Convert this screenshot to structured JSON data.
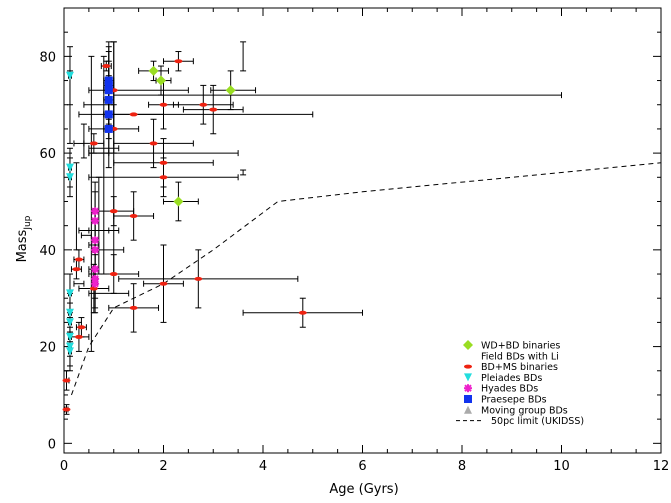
{
  "chart_data": {
    "type": "scatter",
    "title": "",
    "xlabel": "Age (Gyrs)",
    "ylabel_main": "Mass",
    "ylabel_sub": "Jup",
    "xlim": [
      0,
      12
    ],
    "ylim": [
      -2,
      90
    ],
    "xticks": [
      0,
      2,
      4,
      6,
      8,
      10,
      12
    ],
    "yticks": [
      0,
      20,
      40,
      60,
      80
    ],
    "grid": false,
    "legend_position": "bottom-right",
    "series": [
      {
        "name": "WD+BD binaries",
        "marker": "diamond",
        "color": "#99dd22",
        "points": [
          {
            "x": 1.8,
            "y": 77,
            "xerr": [
              0.3,
              0.3
            ],
            "yerr": [
              2,
              2
            ]
          },
          {
            "x": 1.95,
            "y": 75,
            "xerr": [
              0.1,
              0.2
            ],
            "yerr": [
              3,
              3
            ]
          },
          {
            "x": 3.35,
            "y": 73,
            "xerr": [
              0.4,
              0.5
            ],
            "yerr": [
              4,
              4
            ]
          },
          {
            "x": 2.3,
            "y": 50,
            "xerr": [
              0.3,
              0.4
            ],
            "yerr": [
              4,
              4
            ]
          }
        ]
      },
      {
        "name": "Field BDs with Li",
        "marker": "bowtie",
        "color": "#8833cc",
        "points": [
          {
            "x": 3.6,
            "y": 80,
            "xerr": [
              0,
              0
            ],
            "yerr": [
              3,
              3
            ]
          },
          {
            "x": 3.6,
            "y": 56,
            "xerr": [
              0,
              0
            ],
            "yerr": [
              0.5,
              0.5
            ]
          },
          {
            "x": 2.0,
            "y": 60,
            "xerr": [
              1.5,
              1.5
            ],
            "yerr": [
              0,
              0
            ]
          },
          {
            "x": 0.8,
            "y": 61,
            "xerr": [
              0.3,
              0.3
            ],
            "yerr": [
              0,
              0
            ]
          },
          {
            "x": 0.8,
            "y": 50,
            "xerr": [
              0,
              0
            ],
            "yerr": [
              0,
              0
            ]
          },
          {
            "x": 0.8,
            "y": 44,
            "xerr": [
              0.3,
              0.3
            ],
            "yerr": [
              0,
              0
            ]
          },
          {
            "x": 0.9,
            "y": 40,
            "xerr": [
              0.3,
              0.3
            ],
            "yerr": [
              0,
              0
            ]
          },
          {
            "x": 0.9,
            "y": 31,
            "xerr": [
              0.4,
              0.4
            ],
            "yerr": [
              0,
              0
            ]
          }
        ]
      },
      {
        "name": "BD+MS binaries",
        "marker": "dash",
        "color": "#ee2211",
        "points": [
          {
            "x": 2.3,
            "y": 79,
            "xerr": [
              0.3,
              0.3
            ],
            "yerr": [
              2,
              2
            ]
          },
          {
            "x": 0.85,
            "y": 78,
            "xerr": [
              0.1,
              0.1
            ],
            "yerr": [
              1,
              1
            ]
          },
          {
            "x": 2.0,
            "y": 70,
            "xerr": [
              0.3,
              0.3
            ],
            "yerr": [
              5,
              5
            ]
          },
          {
            "x": 1.0,
            "y": 73,
            "xerr": [
              0.5,
              1.5
            ],
            "yerr": [
              8,
              10
            ]
          },
          {
            "x": 2.8,
            "y": 70,
            "xerr": [
              0.6,
              0.6
            ],
            "yerr": [
              4,
              4
            ]
          },
          {
            "x": 3.0,
            "y": 69,
            "xerr": [
              0.6,
              0.6
            ],
            "yerr": [
              5,
              5
            ]
          },
          {
            "x": 1.4,
            "y": 68,
            "xerr": [
              0.6,
              0.6
            ],
            "yerr": [
              0,
              0
            ]
          },
          {
            "x": 1.0,
            "y": 65,
            "xerr": [
              0.5,
              0.5
            ],
            "yerr": [
              5,
              5
            ]
          },
          {
            "x": 1.8,
            "y": 62,
            "xerr": [
              0.8,
              0.8
            ],
            "yerr": [
              5,
              5
            ]
          },
          {
            "x": 0.6,
            "y": 62,
            "xerr": [
              0.2,
              0.2
            ],
            "yerr": [
              2,
              2
            ]
          },
          {
            "x": 2.0,
            "y": 58,
            "xerr": [
              1.0,
              1.0
            ],
            "yerr": [
              5,
              5
            ]
          },
          {
            "x": 2.0,
            "y": 55,
            "xerr": [
              1.5,
              1.5
            ],
            "yerr": [
              4,
              4
            ]
          },
          {
            "x": 1.0,
            "y": 48,
            "xerr": [
              0.4,
              0.4
            ],
            "yerr": [
              3,
              3
            ]
          },
          {
            "x": 1.4,
            "y": 47,
            "xerr": [
              0.4,
              0.4
            ],
            "yerr": [
              5,
              5
            ]
          },
          {
            "x": 0.3,
            "y": 38,
            "xerr": [
              0.1,
              0.1
            ],
            "yerr": [
              2,
              2
            ]
          },
          {
            "x": 0.25,
            "y": 36,
            "xerr": [
              0.1,
              0.1
            ],
            "yerr": [
              2,
              2
            ]
          },
          {
            "x": 1.0,
            "y": 35,
            "xerr": [
              0.5,
              0.5
            ],
            "yerr": [
              4,
              4
            ]
          },
          {
            "x": 2.7,
            "y": 34,
            "xerr": [
              1.6,
              2.0
            ],
            "yerr": [
              6,
              6
            ]
          },
          {
            "x": 2.0,
            "y": 33,
            "xerr": [
              0.4,
              0.4
            ],
            "yerr": [
              8,
              8
            ]
          },
          {
            "x": 0.6,
            "y": 32,
            "xerr": [
              0.3,
              0.3
            ],
            "yerr": [
              5,
              5
            ]
          },
          {
            "x": 1.4,
            "y": 28,
            "xerr": [
              0.5,
              0.5
            ],
            "yerr": [
              5,
              5
            ]
          },
          {
            "x": 4.8,
            "y": 27,
            "xerr": [
              1.2,
              1.2
            ],
            "yerr": [
              3,
              3
            ]
          },
          {
            "x": 0.35,
            "y": 24,
            "xerr": [
              0.1,
              0.1
            ],
            "yerr": [
              2,
              2
            ]
          },
          {
            "x": 0.3,
            "y": 22,
            "xerr": [
              0.2,
              0.2
            ],
            "yerr": [
              3,
              3
            ]
          },
          {
            "x": 0.05,
            "y": 13,
            "xerr": [
              0.05,
              0.05
            ],
            "yerr": [
              2,
              2
            ]
          },
          {
            "x": 0.05,
            "y": 7,
            "xerr": [
              0.03,
              0.03
            ],
            "yerr": [
              1,
              1
            ]
          }
        ]
      },
      {
        "name": "Pleiades BDs",
        "marker": "triangle-down",
        "color": "#22dddd",
        "points": [
          {
            "x": 0.12,
            "y": 76,
            "xerr": [
              0.03,
              0.03
            ],
            "yerr": [
              6,
              6
            ]
          },
          {
            "x": 0.12,
            "y": 57,
            "xerr": [
              0.03,
              0.03
            ],
            "yerr": [
              4,
              4
            ]
          },
          {
            "x": 0.12,
            "y": 55,
            "xerr": [
              0.03,
              0.03
            ],
            "yerr": [
              4,
              4
            ]
          },
          {
            "x": 0.12,
            "y": 31,
            "xerr": [
              0.03,
              0.03
            ],
            "yerr": [
              4,
              4
            ]
          },
          {
            "x": 0.12,
            "y": 27,
            "xerr": [
              0.03,
              0.03
            ],
            "yerr": [
              4,
              4
            ]
          },
          {
            "x": 0.12,
            "y": 25,
            "xerr": [
              0.03,
              0.03
            ],
            "yerr": [
              4,
              4
            ]
          },
          {
            "x": 0.12,
            "y": 22,
            "xerr": [
              0.03,
              0.03
            ],
            "yerr": [
              4,
              4
            ]
          },
          {
            "x": 0.12,
            "y": 20,
            "xerr": [
              0.03,
              0.03
            ],
            "yerr": [
              4,
              4
            ]
          },
          {
            "x": 0.12,
            "y": 19,
            "xerr": [
              0.03,
              0.03
            ],
            "yerr": [
              4,
              4
            ]
          }
        ]
      },
      {
        "name": "Hyades BDs",
        "marker": "asterisk",
        "color": "#ee22cc",
        "points": [
          {
            "x": 0.625,
            "y": 48,
            "xerr": [
              0.05,
              0.05
            ],
            "yerr": [
              6,
              6
            ]
          },
          {
            "x": 0.625,
            "y": 46,
            "xerr": [
              0.05,
              0.05
            ],
            "yerr": [
              6,
              6
            ]
          },
          {
            "x": 0.625,
            "y": 42,
            "xerr": [
              0.05,
              0.05
            ],
            "yerr": [
              6,
              6
            ]
          },
          {
            "x": 0.625,
            "y": 40,
            "xerr": [
              0.05,
              0.05
            ],
            "yerr": [
              6,
              6
            ]
          },
          {
            "x": 0.625,
            "y": 36,
            "xerr": [
              0.05,
              0.05
            ],
            "yerr": [
              6,
              6
            ]
          },
          {
            "x": 0.625,
            "y": 34,
            "xerr": [
              0.05,
              0.05
            ],
            "yerr": [
              6,
              6
            ]
          },
          {
            "x": 0.625,
            "y": 33,
            "xerr": [
              0.05,
              0.05
            ],
            "yerr": [
              6,
              6
            ]
          }
        ]
      },
      {
        "name": "Praesepe BDs",
        "marker": "square",
        "color": "#1133ee",
        "points": [
          {
            "x": 0.9,
            "y": 75,
            "xerr": [
              0.1,
              0.1
            ],
            "yerr": [
              8,
              8
            ]
          },
          {
            "x": 0.9,
            "y": 74,
            "xerr": [
              0.1,
              0.1
            ],
            "yerr": [
              8,
              8
            ]
          },
          {
            "x": 0.9,
            "y": 73,
            "xerr": [
              0.1,
              0.1
            ],
            "yerr": [
              8,
              8
            ]
          },
          {
            "x": 0.9,
            "y": 71,
            "xerr": [
              0.1,
              0.1
            ],
            "yerr": [
              8,
              8
            ]
          },
          {
            "x": 0.9,
            "y": 68,
            "xerr": [
              0.1,
              0.1
            ],
            "yerr": [
              8,
              8
            ]
          },
          {
            "x": 0.9,
            "y": 65,
            "xerr": [
              0.1,
              0.1
            ],
            "yerr": [
              8,
              8
            ]
          }
        ]
      },
      {
        "name": "Moving group BDs",
        "marker": "triangle-up",
        "color": "#aaaaaa",
        "points": []
      }
    ],
    "extra_bars": [
      {
        "x": 1.0,
        "y": 72,
        "xerr": [
          0,
          9
        ],
        "yerr": [
          0,
          0
        ]
      },
      {
        "x": 0.4,
        "y": 70,
        "xerr": [
          0,
          0.6
        ],
        "yerr": [
          0,
          0
        ]
      },
      {
        "x": 0.3,
        "y": 68,
        "xerr": [
          0,
          4.7
        ],
        "yerr": [
          0,
          0
        ]
      },
      {
        "x": 0.2,
        "y": 62,
        "xerr": [
          0,
          0.2
        ],
        "yerr": [
          0,
          0
        ]
      },
      {
        "x": 0.5,
        "y": 60,
        "xerr": [
          0,
          0.4
        ],
        "yerr": [
          0,
          0
        ]
      },
      {
        "x": 0.3,
        "y": 44,
        "xerr": [
          0,
          0.6
        ],
        "yerr": [
          0,
          0
        ]
      },
      {
        "x": 0.35,
        "y": 43,
        "xerr": [
          0,
          0.2
        ],
        "yerr": [
          0,
          0
        ]
      },
      {
        "x": 0.5,
        "y": 41,
        "xerr": [
          0,
          0.2
        ],
        "yerr": [
          0,
          0
        ]
      },
      {
        "x": 0.5,
        "y": 36,
        "xerr": [
          0,
          0.1
        ],
        "yerr": [
          0,
          0
        ]
      },
      {
        "x": 0.2,
        "y": 33,
        "xerr": [
          0,
          0.2
        ],
        "yerr": [
          0,
          0
        ]
      },
      {
        "x": 0.12,
        "y": 64,
        "xerr": [
          0,
          0
        ],
        "yerr": [
          2,
          13
        ]
      },
      {
        "x": 0.25,
        "y": 45,
        "xerr": [
          0,
          0
        ],
        "yerr": [
          5,
          13
        ]
      },
      {
        "x": 0.4,
        "y": 62,
        "xerr": [
          0,
          0
        ],
        "yerr": [
          3,
          4
        ]
      },
      {
        "x": 0.55,
        "y": 55,
        "xerr": [
          0,
          0
        ],
        "yerr": [
          36,
          25
        ]
      },
      {
        "x": 0.8,
        "y": 55,
        "xerr": [
          0,
          0
        ],
        "yerr": [
          20,
          25
        ]
      },
      {
        "x": 1.0,
        "y": 60,
        "xerr": [
          0,
          0
        ],
        "yerr": [
          25,
          23
        ]
      },
      {
        "x": 0.7,
        "y": 45,
        "xerr": [
          0,
          0
        ],
        "yerr": [
          10,
          10
        ]
      }
    ],
    "limit_curve": {
      "name": "50pc limit (UKIDSS)",
      "style": "dashed",
      "x": [
        0.15,
        0.5,
        1.0,
        2.0,
        3.0,
        4.3,
        6.0,
        8.0,
        10.0,
        12.0
      ],
      "y": [
        10,
        20,
        28,
        33,
        40,
        50,
        52,
        54,
        56,
        58
      ]
    }
  }
}
